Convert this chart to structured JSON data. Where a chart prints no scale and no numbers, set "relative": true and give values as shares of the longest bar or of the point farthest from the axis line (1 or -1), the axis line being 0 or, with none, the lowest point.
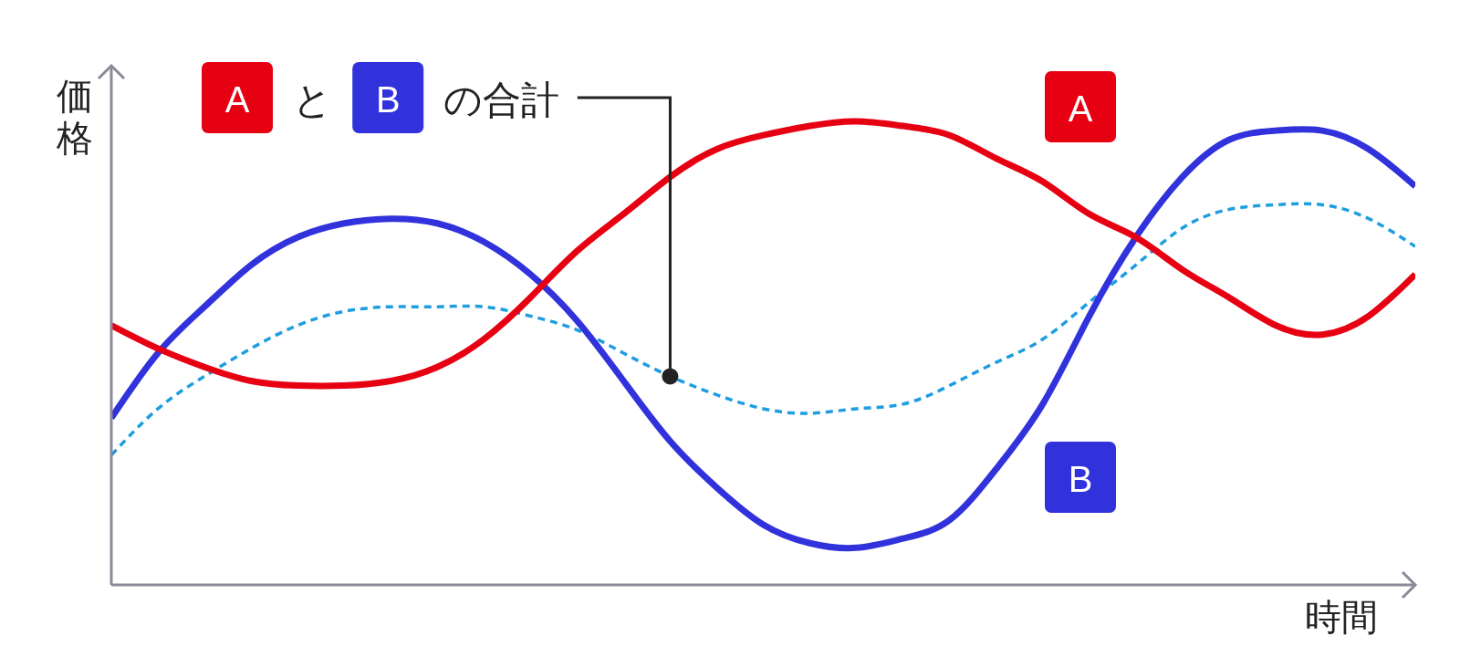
{
  "chart_data": {
    "type": "line",
    "relative": true,
    "xlabel": "時間",
    "ylabel": "価格",
    "categories": [
      null,
      null,
      null,
      null,
      null,
      null,
      null,
      null,
      null,
      null,
      null,
      null,
      null,
      null,
      null,
      null,
      null,
      null,
      null,
      null,
      null,
      null,
      null,
      null,
      null,
      null,
      null,
      null,
      null
    ],
    "series": [
      {
        "name": "A",
        "color": "#e60012",
        "values": [
          0.56,
          0.51,
          0.47,
          0.44,
          0.43,
          0.43,
          0.44,
          0.47,
          0.53,
          0.62,
          0.72,
          0.8,
          0.88,
          0.94,
          0.97,
          0.99,
          1.0,
          0.99,
          0.97,
          0.92,
          0.87,
          0.8,
          0.75,
          0.68,
          0.62,
          0.56,
          0.54,
          0.58,
          0.67
        ]
      },
      {
        "name": "B",
        "color": "#3232dc",
        "values": [
          0.36,
          0.5,
          0.6,
          0.69,
          0.75,
          0.78,
          0.79,
          0.78,
          0.74,
          0.67,
          0.57,
          0.44,
          0.31,
          0.21,
          0.13,
          0.09,
          0.08,
          0.1,
          0.14,
          0.25,
          0.39,
          0.58,
          0.75,
          0.88,
          0.96,
          0.98,
          0.98,
          0.94,
          0.86
        ]
      },
      {
        "name": "A と B の合計",
        "color": "#1e9ee0",
        "line_style": "dashed",
        "values": [
          0.28,
          0.38,
          0.45,
          0.51,
          0.56,
          0.59,
          0.6,
          0.6,
          0.6,
          0.58,
          0.55,
          0.5,
          0.45,
          0.41,
          0.38,
          0.37,
          0.38,
          0.39,
          0.43,
          0.48,
          0.53,
          0.61,
          0.69,
          0.77,
          0.81,
          0.82,
          0.82,
          0.79,
          0.73
        ]
      }
    ]
  }
}
